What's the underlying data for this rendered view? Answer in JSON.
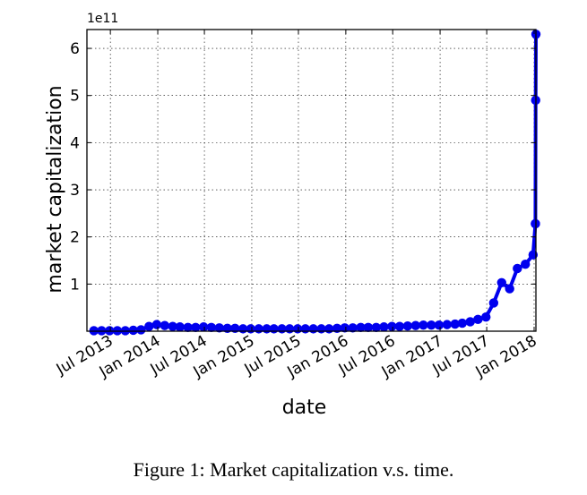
{
  "chart_data": {
    "type": "line",
    "xlabel": "date",
    "ylabel": "market capitalization",
    "y_offset_label": "1e11",
    "x_ticks": [
      "Jul 2013",
      "Jan 2014",
      "Jul 2014",
      "Jan 2015",
      "Jul 2015",
      "Jan 2016",
      "Jul 2016",
      "Jan 2017",
      "Jul 2017",
      "Jan 2018"
    ],
    "y_ticks": [
      "1",
      "2",
      "3",
      "4",
      "5",
      "6"
    ],
    "xlim": [
      "2013-04-01",
      "2018-01-08"
    ],
    "ylim": [
      0,
      6.4
    ],
    "grid": true,
    "line_color": "#0000ee",
    "series": [
      {
        "x": [
          "2013-04-28",
          "2013-05-28",
          "2013-06-28",
          "2013-07-28",
          "2013-08-28",
          "2013-09-28",
          "2013-10-28",
          "2013-11-28",
          "2013-12-28",
          "2014-01-28",
          "2014-02-28",
          "2014-03-28",
          "2014-04-28",
          "2014-05-28",
          "2014-06-28",
          "2014-07-28",
          "2014-08-28",
          "2014-09-28",
          "2014-10-28",
          "2014-11-28",
          "2014-12-28",
          "2015-01-28",
          "2015-02-28",
          "2015-03-28",
          "2015-04-28",
          "2015-05-28",
          "2015-06-28",
          "2015-07-28",
          "2015-08-28",
          "2015-09-28",
          "2015-10-28",
          "2015-11-28",
          "2015-12-28",
          "2016-01-28",
          "2016-02-28",
          "2016-03-28",
          "2016-04-28",
          "2016-05-28",
          "2016-06-28",
          "2016-07-28",
          "2016-08-28",
          "2016-09-28",
          "2016-10-28",
          "2016-11-28",
          "2016-12-28",
          "2017-01-28",
          "2017-02-28",
          "2017-03-28",
          "2017-04-28",
          "2017-05-28",
          "2017-06-28",
          "2017-07-28",
          "2017-08-28",
          "2017-09-28",
          "2017-10-28",
          "2017-11-28",
          "2017-12-28",
          "2018-01-06"
        ],
        "values": [
          0.01,
          0.01,
          0.01,
          0.01,
          0.01,
          0.02,
          0.03,
          0.1,
          0.14,
          0.12,
          0.1,
          0.09,
          0.08,
          0.08,
          0.09,
          0.08,
          0.07,
          0.06,
          0.06,
          0.05,
          0.05,
          0.05,
          0.05,
          0.05,
          0.05,
          0.05,
          0.05,
          0.05,
          0.05,
          0.05,
          0.05,
          0.06,
          0.07,
          0.07,
          0.08,
          0.08,
          0.08,
          0.09,
          0.1,
          0.1,
          0.11,
          0.12,
          0.13,
          0.13,
          0.13,
          0.14,
          0.15,
          0.17,
          0.2,
          0.25,
          0.3,
          0.6,
          1.03,
          0.9,
          1.33,
          1.42,
          1.62,
          2.28
        ]
      },
      {
        "x": [
          "2018-01-06",
          "2018-01-07",
          "2018-01-08"
        ],
        "values": [
          2.28,
          4.9,
          6.3
        ]
      }
    ]
  },
  "caption": "Figure 1: Market capitalization v.s. time."
}
